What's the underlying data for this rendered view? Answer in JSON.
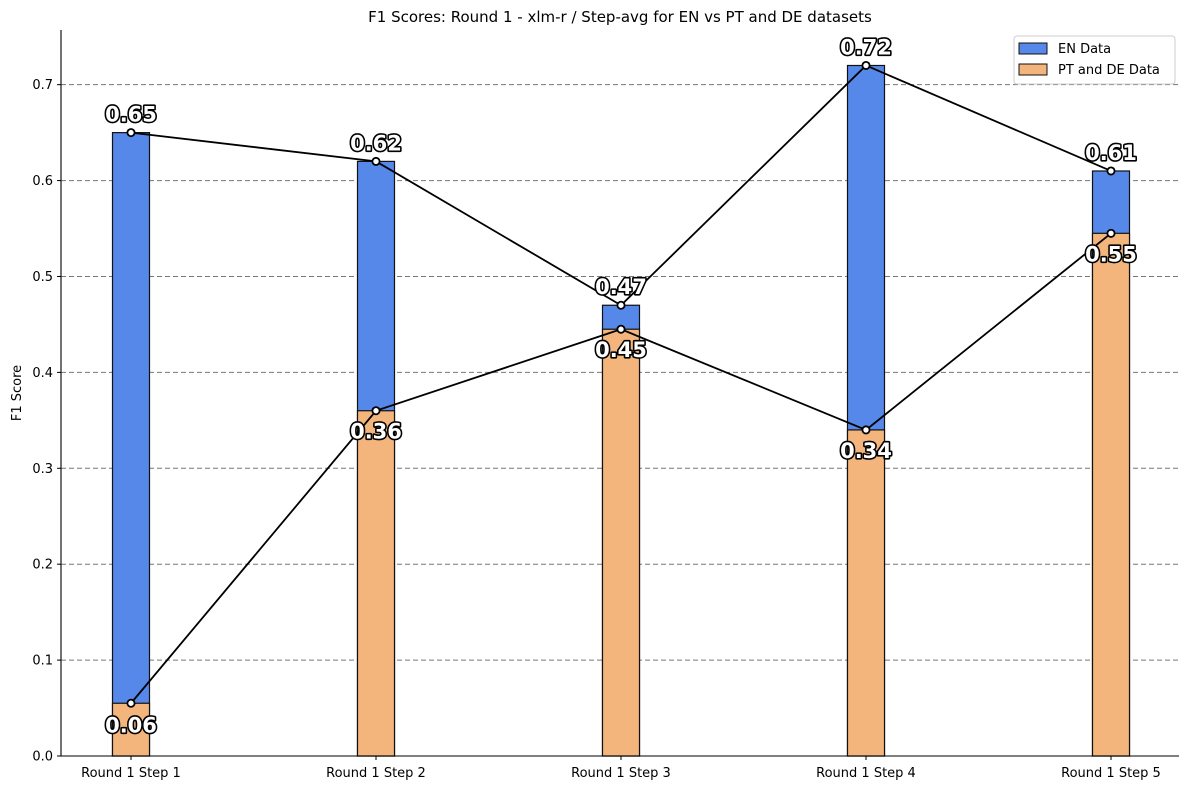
{
  "chart_data": {
    "type": "bar",
    "title": "F1 Scores: Round 1 - xlm-r / Step-avg for EN vs PT and DE datasets",
    "xlabel": "",
    "ylabel": "F1 Score",
    "categories": [
      "Round 1 Step 1",
      "Round 1 Step 2",
      "Round 1 Step 3",
      "Round 1 Step 4",
      "Round 1 Step 5"
    ],
    "series": [
      {
        "name": "EN Data",
        "values": [
          0.65,
          0.62,
          0.47,
          0.72,
          0.61
        ],
        "labels": [
          "0.65",
          "0.62",
          "0.47",
          "0.72",
          "0.61"
        ],
        "color": "#5588e8"
      },
      {
        "name": "PT and DE Data",
        "values": [
          0.055,
          0.36,
          0.445,
          0.34,
          0.545
        ],
        "labels": [
          "0.06",
          "0.36",
          "0.45",
          "0.34",
          "0.55"
        ],
        "color": "#f4b57d"
      }
    ],
    "ylim": [
      0,
      0.757
    ],
    "yticks": [
      "0.0",
      "0.1",
      "0.2",
      "0.3",
      "0.4",
      "0.5",
      "0.6",
      "0.7"
    ],
    "grid": true,
    "legend_position": "top-right",
    "line_color": "#000000"
  }
}
